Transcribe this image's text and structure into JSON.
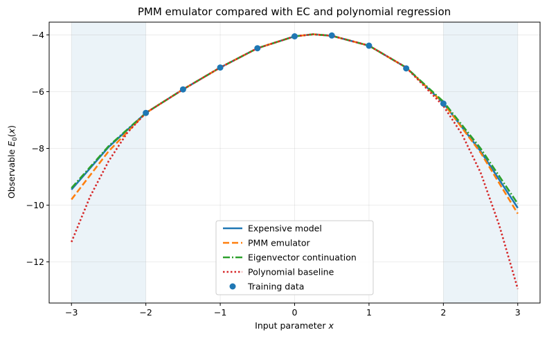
{
  "chart_data": {
    "type": "line",
    "title": "PMM emulator compared with EC and polynomial regression",
    "xlabel": "Input parameter x",
    "ylabel": "Observable E0(x)",
    "xlim": [
      -3.3,
      3.3
    ],
    "ylim": [
      -13.45,
      -3.55
    ],
    "xticks": [
      -3,
      -2,
      -1,
      0,
      1,
      2,
      3
    ],
    "xtick_labels": [
      "−3",
      "−2",
      "−1",
      "0",
      "1",
      "2",
      "3"
    ],
    "yticks": [
      -12,
      -10,
      -8,
      -6,
      -4
    ],
    "ytick_labels": [
      "−12",
      "−10",
      "−8",
      "−6",
      "−4"
    ],
    "grid": true,
    "legend_position": "lower-center",
    "shaded_regions": [
      [
        -3,
        -2
      ],
      [
        2,
        3
      ]
    ],
    "series": [
      {
        "name": "Expensive model",
        "style": "solid",
        "color": "#1f77b4",
        "x": [
          -3,
          -2.5,
          -2,
          -1.5,
          -1,
          -0.5,
          0,
          0.25,
          0.5,
          1,
          1.5,
          2,
          2.5,
          3
        ],
        "y": [
          -9.45,
          -7.95,
          -6.75,
          -5.92,
          -5.15,
          -4.47,
          -4.05,
          -3.98,
          -4.03,
          -4.38,
          -5.15,
          -6.4,
          -8.1,
          -10.1
        ]
      },
      {
        "name": "PMM emulator",
        "style": "dashed",
        "color": "#ff7f0e",
        "x": [
          -3,
          -2.5,
          -2,
          -1.5,
          -1,
          -0.5,
          0,
          0.25,
          0.5,
          1,
          1.5,
          2,
          2.5,
          3
        ],
        "y": [
          -9.8,
          -8.1,
          -6.75,
          -5.92,
          -5.15,
          -4.47,
          -4.05,
          -3.98,
          -4.03,
          -4.38,
          -5.15,
          -6.4,
          -8.15,
          -10.3
        ]
      },
      {
        "name": "Eigenvector continuation",
        "style": "dashdot",
        "color": "#2ca02c",
        "x": [
          -3,
          -2.5,
          -2,
          -1.5,
          -1,
          -0.5,
          0,
          0.25,
          0.5,
          1,
          1.5,
          2,
          2.5,
          3
        ],
        "y": [
          -9.4,
          -7.92,
          -6.75,
          -5.92,
          -5.15,
          -4.47,
          -4.05,
          -3.98,
          -4.03,
          -4.38,
          -5.15,
          -6.35,
          -8.0,
          -9.95
        ]
      },
      {
        "name": "Polynomial baseline",
        "style": "dotted",
        "color": "#d62728",
        "x": [
          -3,
          -2.75,
          -2.5,
          -2.25,
          -2,
          -1.5,
          -1,
          -0.5,
          0,
          0.25,
          0.5,
          1,
          1.5,
          2,
          2.25,
          2.5,
          2.75,
          3
        ],
        "y": [
          -11.3,
          -9.7,
          -8.45,
          -7.45,
          -6.75,
          -5.92,
          -5.15,
          -4.47,
          -4.05,
          -3.98,
          -4.03,
          -4.38,
          -5.15,
          -6.5,
          -7.5,
          -8.85,
          -10.7,
          -12.95
        ]
      }
    ],
    "training_data": {
      "name": "Training data",
      "color": "#1f77b4",
      "x": [
        -2,
        -1.5,
        -1,
        -0.5,
        0,
        0.5,
        1,
        1.5,
        2
      ],
      "y": [
        -6.75,
        -5.92,
        -5.15,
        -4.47,
        -4.05,
        -4.02,
        -4.38,
        -5.18,
        -6.42
      ]
    }
  },
  "legend": {
    "items": [
      {
        "label": "Expensive model",
        "style": "solid",
        "color": "#1f77b4"
      },
      {
        "label": "PMM emulator",
        "style": "dashed",
        "color": "#ff7f0e"
      },
      {
        "label": "Eigenvector continuation",
        "style": "dashdot",
        "color": "#2ca02c"
      },
      {
        "label": "Polynomial baseline",
        "style": "dotted",
        "color": "#d62728"
      },
      {
        "label": "Training data",
        "style": "marker",
        "color": "#1f77b4"
      }
    ]
  }
}
